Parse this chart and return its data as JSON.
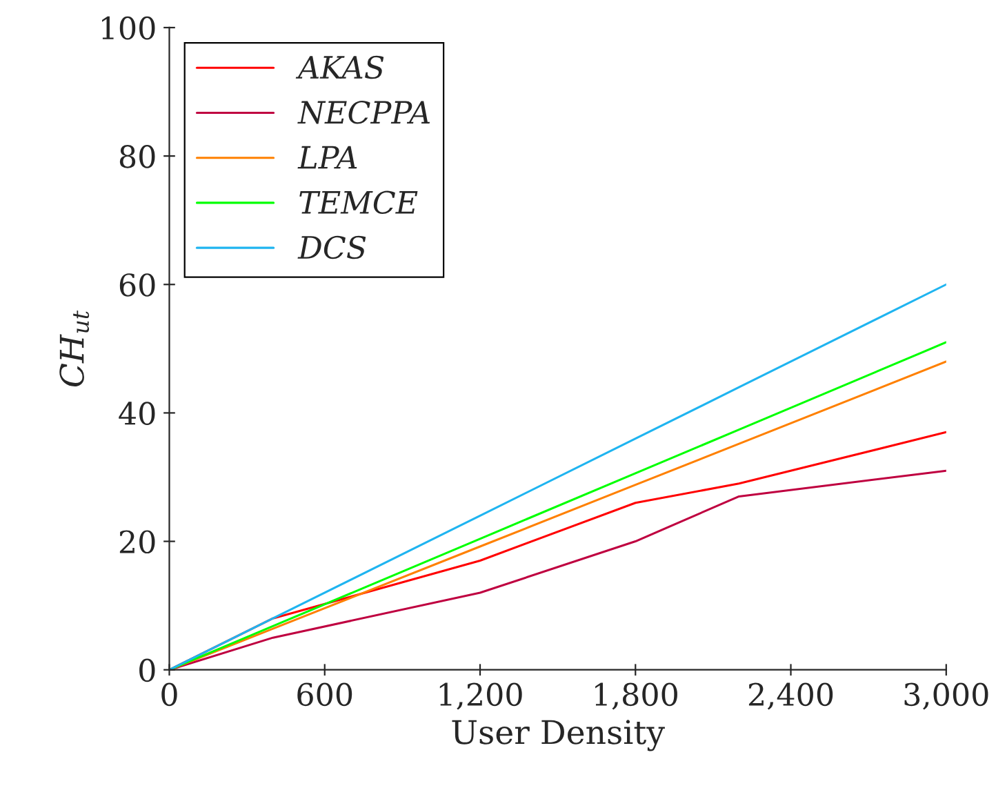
{
  "chart_data": {
    "type": "line",
    "xlabel": "User Density",
    "ylabel": "CH$_{ut}$",
    "x": [
      0,
      400,
      1200,
      1800,
      2200,
      3000
    ],
    "series": [
      {
        "name": "AKAS",
        "color": "#ff0000",
        "values": [
          0,
          8,
          17,
          26,
          29,
          37
        ]
      },
      {
        "name": "NECPPA",
        "color": "#bf0040",
        "values": [
          0,
          5,
          12,
          20,
          27,
          31
        ]
      },
      {
        "name": "LPA",
        "color": "#ff8000",
        "values": [
          0,
          6.4,
          19.2,
          28.8,
          35.2,
          48
        ]
      },
      {
        "name": "TEMCE",
        "color": "#00ff00",
        "values": [
          0,
          6.8,
          20.4,
          30.6,
          37.4,
          51
        ]
      },
      {
        "name": "DCS",
        "color": "#1fb4f0",
        "values": [
          0,
          8,
          24,
          36,
          44,
          60
        ]
      }
    ],
    "xlim": [
      0,
      3000
    ],
    "ylim": [
      0,
      100
    ],
    "xticks": [
      0,
      600,
      {
        "value": 1200,
        "label": "1,200"
      },
      {
        "value": 1800,
        "label": "1,800"
      },
      {
        "value": 2400,
        "label": "2,400"
      },
      {
        "value": 3000,
        "label": "3,000"
      }
    ],
    "yticks": [
      0,
      20,
      40,
      60,
      80,
      100
    ],
    "grid": false,
    "legend": "top left",
    "marker": "none",
    "line_style": "solid"
  }
}
